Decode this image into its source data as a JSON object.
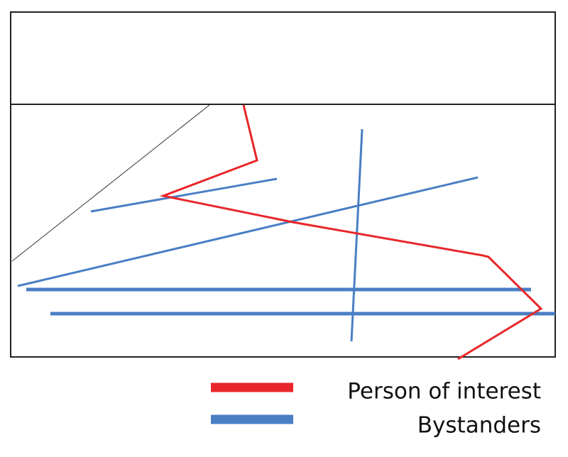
{
  "legend": {
    "items": [
      {
        "label": "Person of interest"
      },
      {
        "label": "Bystanders"
      }
    ]
  }
}
